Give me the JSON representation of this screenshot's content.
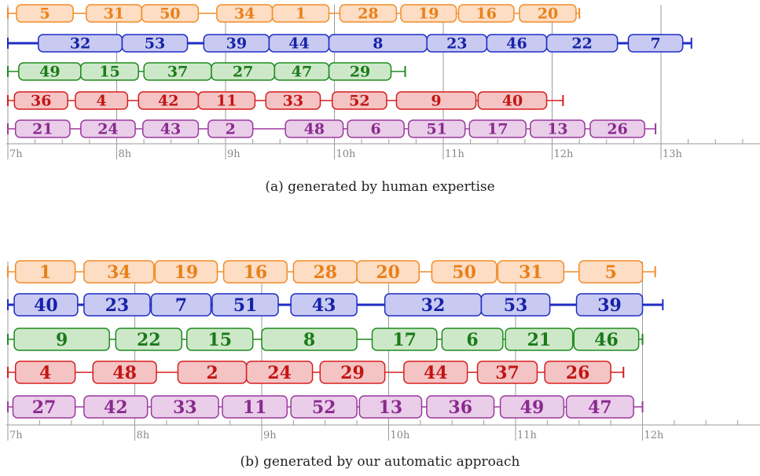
{
  "captions": {
    "a": "(a) generated by human expertise",
    "b": "(b) generated by our automatic approach"
  },
  "series_colors": {
    "orange": {
      "stroke": "#F28C28",
      "fill": "#FDDDC3",
      "text": "#E8801A"
    },
    "blue": {
      "stroke": "#1F2DC4",
      "fill": "#C8CAF2",
      "text": "#1622A8"
    },
    "green": {
      "stroke": "#1E8A1E",
      "fill": "#CDE8C8",
      "text": "#1A7A1A"
    },
    "red": {
      "stroke": "#D61F1F",
      "fill": "#F4C4C4",
      "text": "#C41414"
    },
    "purple": {
      "stroke": "#9A3A9E",
      "fill": "#E9CDE9",
      "text": "#8A2A8E"
    }
  },
  "chart_data": [
    {
      "type": "gantt",
      "caption": "(a) generated by human expertise",
      "x_unit": "hours",
      "xlim": [
        7,
        13.9
      ],
      "x_ticks": [
        "7h",
        "8h",
        "9h",
        "10h",
        "11h",
        "12h",
        "13h"
      ],
      "rows": [
        {
          "color": "orange",
          "start": 7.0,
          "end": 12.25,
          "tasks": [
            {
              "label": "5",
              "start": 7.08,
              "end": 7.6
            },
            {
              "label": "31",
              "start": 7.72,
              "end": 8.23
            },
            {
              "label": "50",
              "start": 8.23,
              "end": 8.75
            },
            {
              "label": "34",
              "start": 8.92,
              "end": 9.43
            },
            {
              "label": "1",
              "start": 9.43,
              "end": 9.95
            },
            {
              "label": "28",
              "start": 10.05,
              "end": 10.57
            },
            {
              "label": "19",
              "start": 10.61,
              "end": 11.12
            },
            {
              "label": "16",
              "start": 11.14,
              "end": 11.65
            },
            {
              "label": "20",
              "start": 11.7,
              "end": 12.22
            }
          ]
        },
        {
          "color": "blue",
          "start": 7.0,
          "end": 13.28,
          "tasks": [
            {
              "label": "32",
              "start": 7.28,
              "end": 8.05
            },
            {
              "label": "53",
              "start": 8.05,
              "end": 8.65
            },
            {
              "label": "39",
              "start": 8.8,
              "end": 9.4
            },
            {
              "label": "44",
              "start": 9.4,
              "end": 9.95
            },
            {
              "label": "8",
              "start": 9.95,
              "end": 10.85
            },
            {
              "label": "23",
              "start": 10.85,
              "end": 11.4
            },
            {
              "label": "46",
              "start": 11.4,
              "end": 11.95
            },
            {
              "label": "22",
              "start": 11.95,
              "end": 12.6
            },
            {
              "label": "7",
              "start": 12.7,
              "end": 13.2
            }
          ]
        },
        {
          "color": "green",
          "start": 7.0,
          "end": 10.65,
          "tasks": [
            {
              "label": "49",
              "start": 7.1,
              "end": 7.67
            },
            {
              "label": "15",
              "start": 7.67,
              "end": 8.2
            },
            {
              "label": "37",
              "start": 8.25,
              "end": 8.87
            },
            {
              "label": "27",
              "start": 8.87,
              "end": 9.45
            },
            {
              "label": "47",
              "start": 9.45,
              "end": 9.95
            },
            {
              "label": "29",
              "start": 9.95,
              "end": 10.52
            }
          ]
        },
        {
          "color": "red",
          "start": 7.0,
          "end": 12.1,
          "tasks": [
            {
              "label": "36",
              "start": 7.06,
              "end": 7.55
            },
            {
              "label": "4",
              "start": 7.62,
              "end": 8.1
            },
            {
              "label": "42",
              "start": 8.2,
              "end": 8.75
            },
            {
              "label": "11",
              "start": 8.75,
              "end": 9.27
            },
            {
              "label": "33",
              "start": 9.37,
              "end": 9.87
            },
            {
              "label": "52",
              "start": 9.98,
              "end": 10.48
            },
            {
              "label": "9",
              "start": 10.57,
              "end": 11.3
            },
            {
              "label": "40",
              "start": 11.32,
              "end": 11.95
            }
          ]
        },
        {
          "color": "purple",
          "start": 7.0,
          "end": 12.95,
          "tasks": [
            {
              "label": "21",
              "start": 7.07,
              "end": 7.57
            },
            {
              "label": "24",
              "start": 7.67,
              "end": 8.17
            },
            {
              "label": "43",
              "start": 8.24,
              "end": 8.75
            },
            {
              "label": "2",
              "start": 8.84,
              "end": 9.25
            },
            {
              "label": "48",
              "start": 9.55,
              "end": 10.08
            },
            {
              "label": "6",
              "start": 10.12,
              "end": 10.64
            },
            {
              "label": "51",
              "start": 10.68,
              "end": 11.2
            },
            {
              "label": "17",
              "start": 11.24,
              "end": 11.76
            },
            {
              "label": "13",
              "start": 11.8,
              "end": 12.3
            },
            {
              "label": "26",
              "start": 12.35,
              "end": 12.85
            }
          ]
        }
      ]
    },
    {
      "type": "gantt",
      "caption": "(b) generated by our automatic approach",
      "x_unit": "hours",
      "xlim": [
        7,
        12.9
      ],
      "x_ticks": [
        "7h",
        "8h",
        "9h",
        "10h",
        "11h",
        "12h"
      ],
      "rows": [
        {
          "color": "orange",
          "start": 7.0,
          "end": 12.1,
          "tasks": [
            {
              "label": "1",
              "start": 7.06,
              "end": 7.53
            },
            {
              "label": "34",
              "start": 7.6,
              "end": 8.15
            },
            {
              "label": "19",
              "start": 8.16,
              "end": 8.65
            },
            {
              "label": "16",
              "start": 8.7,
              "end": 9.2
            },
            {
              "label": "28",
              "start": 9.25,
              "end": 9.75
            },
            {
              "label": "20",
              "start": 9.75,
              "end": 10.24
            },
            {
              "label": "50",
              "start": 10.34,
              "end": 10.85
            },
            {
              "label": "31",
              "start": 10.86,
              "end": 11.38
            },
            {
              "label": "5",
              "start": 11.5,
              "end": 12.0
            }
          ]
        },
        {
          "color": "blue",
          "start": 7.0,
          "end": 12.16,
          "tasks": [
            {
              "label": "40",
              "start": 7.05,
              "end": 7.55
            },
            {
              "label": "23",
              "start": 7.6,
              "end": 8.12
            },
            {
              "label": "7",
              "start": 8.13,
              "end": 8.6
            },
            {
              "label": "51",
              "start": 8.61,
              "end": 9.13
            },
            {
              "label": "43",
              "start": 9.23,
              "end": 9.75
            },
            {
              "label": "32",
              "start": 9.97,
              "end": 10.73
            },
            {
              "label": "53",
              "start": 10.73,
              "end": 11.27
            },
            {
              "label": "39",
              "start": 11.48,
              "end": 12.0
            }
          ]
        },
        {
          "color": "green",
          "start": 7.0,
          "end": 12.0,
          "tasks": [
            {
              "label": "9",
              "start": 7.05,
              "end": 7.8
            },
            {
              "label": "22",
              "start": 7.85,
              "end": 8.37
            },
            {
              "label": "15",
              "start": 8.41,
              "end": 8.93
            },
            {
              "label": "8",
              "start": 9.0,
              "end": 9.75
            },
            {
              "label": "17",
              "start": 9.87,
              "end": 10.38
            },
            {
              "label": "6",
              "start": 10.42,
              "end": 10.9
            },
            {
              "label": "21",
              "start": 10.92,
              "end": 11.45
            },
            {
              "label": "46",
              "start": 11.46,
              "end": 11.97
            }
          ]
        },
        {
          "color": "red",
          "start": 7.0,
          "end": 11.85,
          "tasks": [
            {
              "label": "4",
              "start": 7.06,
              "end": 7.53
            },
            {
              "label": "48",
              "start": 7.67,
              "end": 8.17
            },
            {
              "label": "2",
              "start": 8.34,
              "end": 8.88
            },
            {
              "label": "24",
              "start": 8.88,
              "end": 9.4
            },
            {
              "label": "29",
              "start": 9.46,
              "end": 9.97
            },
            {
              "label": "44",
              "start": 10.12,
              "end": 10.62
            },
            {
              "label": "37",
              "start": 10.7,
              "end": 11.17
            },
            {
              "label": "26",
              "start": 11.23,
              "end": 11.75
            }
          ]
        },
        {
          "color": "purple",
          "start": 7.0,
          "end": 12.0,
          "tasks": [
            {
              "label": "27",
              "start": 7.04,
              "end": 7.53
            },
            {
              "label": "42",
              "start": 7.6,
              "end": 8.1
            },
            {
              "label": "33",
              "start": 8.13,
              "end": 8.66
            },
            {
              "label": "11",
              "start": 8.69,
              "end": 9.2
            },
            {
              "label": "52",
              "start": 9.23,
              "end": 9.75
            },
            {
              "label": "13",
              "start": 9.77,
              "end": 10.26
            },
            {
              "label": "36",
              "start": 10.3,
              "end": 10.83
            },
            {
              "label": "49",
              "start": 10.88,
              "end": 11.38
            },
            {
              "label": "47",
              "start": 11.4,
              "end": 11.93
            }
          ]
        }
      ]
    }
  ]
}
